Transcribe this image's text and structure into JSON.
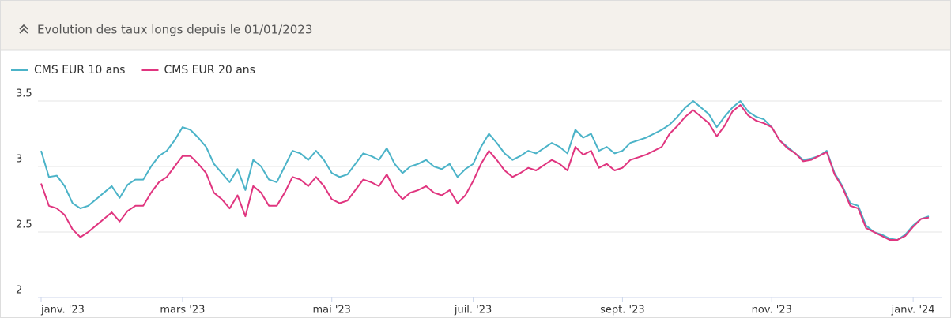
{
  "chart_data": {
    "type": "line",
    "title": "Evolution des taux longs depuis le 01/01/2023",
    "categories": [
      "janv. '23",
      null,
      null,
      null,
      null,
      null,
      null,
      null,
      null,
      null,
      null,
      null,
      null,
      null,
      null,
      null,
      null,
      null,
      "mars '23",
      null,
      null,
      null,
      null,
      null,
      null,
      null,
      null,
      null,
      null,
      null,
      null,
      null,
      null,
      null,
      null,
      null,
      null,
      "mai '23",
      null,
      null,
      null,
      null,
      null,
      null,
      null,
      null,
      null,
      null,
      null,
      null,
      null,
      null,
      null,
      null,
      null,
      "juil. '23",
      null,
      null,
      null,
      null,
      null,
      null,
      null,
      null,
      null,
      null,
      null,
      null,
      null,
      null,
      null,
      null,
      null,
      null,
      "sept. '23",
      null,
      null,
      null,
      null,
      null,
      null,
      null,
      null,
      null,
      null,
      null,
      null,
      null,
      null,
      null,
      null,
      null,
      null,
      "nov. '23",
      null,
      null,
      null,
      null,
      null,
      null,
      null,
      null,
      null,
      null,
      null,
      null,
      null,
      null,
      null,
      null,
      null,
      "janv. '24",
      null,
      null
    ],
    "series": [
      {
        "name": "CMS EUR 10 ans",
        "color": "#4bb3c8",
        "values": [
          3.12,
          2.92,
          2.93,
          2.85,
          2.72,
          2.68,
          2.7,
          2.75,
          2.8,
          2.85,
          2.76,
          2.86,
          2.9,
          2.9,
          3.0,
          3.08,
          3.12,
          3.2,
          3.3,
          3.28,
          3.22,
          3.15,
          3.02,
          2.95,
          2.88,
          2.98,
          2.82,
          3.05,
          3.0,
          2.9,
          2.88,
          3.0,
          3.12,
          3.1,
          3.05,
          3.12,
          3.05,
          2.95,
          2.92,
          2.94,
          3.02,
          3.1,
          3.08,
          3.05,
          3.14,
          3.02,
          2.95,
          3.0,
          3.02,
          3.05,
          3.0,
          2.98,
          3.02,
          2.92,
          2.98,
          3.02,
          3.15,
          3.25,
          3.18,
          3.1,
          3.05,
          3.08,
          3.12,
          3.1,
          3.14,
          3.18,
          3.15,
          3.1,
          3.28,
          3.22,
          3.25,
          3.12,
          3.15,
          3.1,
          3.12,
          3.18,
          3.2,
          3.22,
          3.25,
          3.28,
          3.32,
          3.38,
          3.45,
          3.5,
          3.45,
          3.4,
          3.3,
          3.38,
          3.45,
          3.5,
          3.42,
          3.38,
          3.36,
          3.3,
          3.2,
          3.15,
          3.1,
          3.05,
          3.06,
          3.08,
          3.12,
          2.95,
          2.85,
          2.72,
          2.7,
          2.55,
          2.5,
          2.48,
          2.45,
          2.44,
          2.48,
          2.55,
          2.6,
          2.62
        ]
      },
      {
        "name": "CMS EUR 20 ans",
        "color": "#e0357f",
        "values": [
          2.87,
          2.7,
          2.68,
          2.63,
          2.52,
          2.46,
          2.5,
          2.55,
          2.6,
          2.65,
          2.58,
          2.66,
          2.7,
          2.7,
          2.8,
          2.88,
          2.92,
          3.0,
          3.08,
          3.08,
          3.02,
          2.95,
          2.8,
          2.75,
          2.68,
          2.78,
          2.62,
          2.85,
          2.8,
          2.7,
          2.7,
          2.8,
          2.92,
          2.9,
          2.85,
          2.92,
          2.85,
          2.75,
          2.72,
          2.74,
          2.82,
          2.9,
          2.88,
          2.85,
          2.94,
          2.82,
          2.75,
          2.8,
          2.82,
          2.85,
          2.8,
          2.78,
          2.82,
          2.72,
          2.78,
          2.89,
          3.02,
          3.12,
          3.05,
          2.97,
          2.92,
          2.95,
          2.99,
          2.97,
          3.01,
          3.05,
          3.02,
          2.97,
          3.15,
          3.09,
          3.12,
          2.99,
          3.02,
          2.97,
          2.99,
          3.05,
          3.07,
          3.09,
          3.12,
          3.15,
          3.25,
          3.31,
          3.38,
          3.43,
          3.38,
          3.33,
          3.23,
          3.31,
          3.42,
          3.47,
          3.39,
          3.35,
          3.33,
          3.3,
          3.2,
          3.14,
          3.1,
          3.04,
          3.05,
          3.08,
          3.11,
          2.94,
          2.84,
          2.7,
          2.68,
          2.53,
          2.5,
          2.47,
          2.44,
          2.44,
          2.47,
          2.54,
          2.6,
          2.61
        ]
      }
    ],
    "ylim": [
      2,
      3.5
    ],
    "yticks": [
      2,
      2.5,
      3,
      3.5
    ],
    "grid": true,
    "legend": "top-left"
  }
}
